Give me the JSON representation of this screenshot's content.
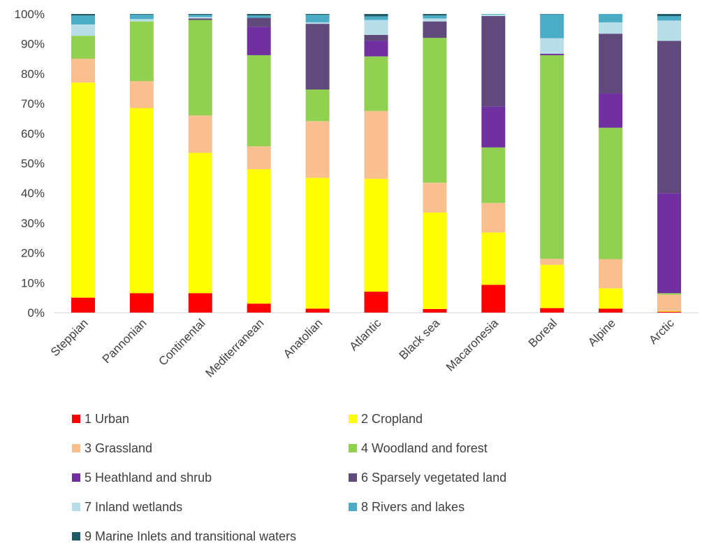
{
  "chart_data": {
    "type": "bar",
    "stacked": true,
    "title": "",
    "xlabel": "",
    "ylabel": "",
    "ylim": [
      0,
      100
    ],
    "y_ticks": [
      "0%",
      "10%",
      "20%",
      "30%",
      "40%",
      "50%",
      "60%",
      "70%",
      "80%",
      "90%",
      "100%"
    ],
    "grid": false,
    "legend_position": "bottom",
    "categories": [
      "Steppian",
      "Pannonian",
      "Continental",
      "Mediterranean",
      "Anatolian",
      "Atlantic",
      "Black sea",
      "Macaronesia",
      "Boreal",
      "Alpine",
      "Arctic"
    ],
    "series": [
      {
        "name": "1 Urban",
        "color": "#ff0000",
        "values": [
          5.0,
          6.5,
          6.5,
          3.0,
          1.3,
          7.0,
          1.2,
          9.3,
          1.5,
          1.3,
          0.3
        ]
      },
      {
        "name": "2 Cropland",
        "color": "#ffff00",
        "values": [
          72.0,
          62.0,
          47.0,
          45.0,
          43.8,
          37.8,
          32.3,
          17.5,
          14.5,
          6.8,
          0.2
        ]
      },
      {
        "name": "3 Grassland",
        "color": "#f9bf8f",
        "values": [
          8.0,
          9.0,
          12.5,
          7.7,
          19.0,
          22.7,
          10.0,
          9.9,
          2.0,
          9.8,
          5.5
        ]
      },
      {
        "name": "4 Woodland and forest",
        "color": "#92d050",
        "values": [
          7.7,
          20.0,
          32.0,
          30.5,
          10.6,
          18.3,
          48.5,
          18.6,
          68.2,
          44.0,
          0.5
        ]
      },
      {
        "name": "5 Heathland and shrub",
        "color": "#7030a0",
        "values": [
          0.0,
          0.0,
          0.0,
          9.5,
          0.0,
          5.2,
          0.0,
          13.7,
          0.5,
          11.5,
          33.5
        ]
      },
      {
        "name": "6 Sparsely vegetated land",
        "color": "#604a7b",
        "values": [
          0.0,
          0.0,
          0.5,
          3.0,
          22.0,
          2.0,
          5.5,
          30.3,
          0.0,
          20.0,
          51.0
        ]
      },
      {
        "name": "7 Inland wetlands",
        "color": "#b7dee8",
        "values": [
          3.8,
          0.8,
          0.5,
          0.0,
          0.5,
          5.0,
          1.0,
          0.5,
          5.2,
          3.8,
          6.8
        ]
      },
      {
        "name": "8 Rivers and lakes",
        "color": "#4bacc6",
        "values": [
          3.0,
          1.5,
          0.7,
          0.8,
          2.5,
          1.2,
          1.0,
          0.2,
          8.0,
          2.8,
          1.5
        ]
      },
      {
        "name": "9 Marine Inlets and transitional waters",
        "color": "#215967",
        "values": [
          0.5,
          0.2,
          0.3,
          0.5,
          0.3,
          0.8,
          0.5,
          0.0,
          0.1,
          0.0,
          0.7
        ]
      }
    ]
  }
}
